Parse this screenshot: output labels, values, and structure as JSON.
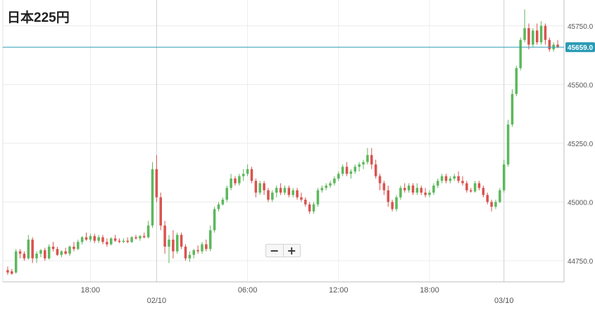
{
  "chart_data": {
    "type": "candlestick",
    "title": "日本225円",
    "y_ticks": [
      "44750.0",
      "45000.0",
      "45250.0",
      "45500.0",
      "45750.0"
    ],
    "ylim": [
      44660,
      45860
    ],
    "current_price": "45659.0",
    "x_tick_labels": [
      {
        "label": "18:00",
        "index": 20
      },
      {
        "label": "02/10",
        "index": 36
      },
      {
        "label": "06:00",
        "index": 58
      },
      {
        "label": "12:00",
        "index": 80
      },
      {
        "label": "18:00",
        "index": 102
      },
      {
        "label": "03/10",
        "index": 120
      }
    ],
    "grid": true,
    "colors": {
      "up": "#5cb85c",
      "down": "#d9534f",
      "price_line": "#2a9bb5",
      "price_label_bg": "#2a9bb5",
      "grid": "#ececec"
    },
    "candles": [
      [
        44710,
        44725,
        44690,
        44700
      ],
      [
        44705,
        44715,
        44690,
        44695
      ],
      [
        44700,
        44800,
        44695,
        44790
      ],
      [
        44790,
        44800,
        44760,
        44780
      ],
      [
        44780,
        44790,
        44750,
        44760
      ],
      [
        44760,
        44860,
        44755,
        44840
      ],
      [
        44840,
        44850,
        44740,
        44760
      ],
      [
        44760,
        44790,
        44740,
        44780
      ],
      [
        44780,
        44800,
        44765,
        44795
      ],
      [
        44795,
        44805,
        44750,
        44760
      ],
      [
        44760,
        44820,
        44755,
        44810
      ],
      [
        44810,
        44830,
        44790,
        44800
      ],
      [
        44800,
        44810,
        44770,
        44775
      ],
      [
        44775,
        44795,
        44765,
        44790
      ],
      [
        44790,
        44805,
        44775,
        44780
      ],
      [
        44780,
        44815,
        44770,
        44810
      ],
      [
        44810,
        44830,
        44790,
        44800
      ],
      [
        44800,
        44840,
        44795,
        44830
      ],
      [
        44830,
        44855,
        44820,
        44850
      ],
      [
        44850,
        44870,
        44835,
        44840
      ],
      [
        44840,
        44865,
        44830,
        44855
      ],
      [
        44855,
        44865,
        44825,
        44835
      ],
      [
        44835,
        44860,
        44825,
        44850
      ],
      [
        44850,
        44860,
        44820,
        44830
      ],
      [
        44830,
        44845,
        44810,
        44820
      ],
      [
        44820,
        44850,
        44815,
        44845
      ],
      [
        44845,
        44860,
        44830,
        44835
      ],
      [
        44835,
        44845,
        44825,
        44830
      ],
      [
        44830,
        44845,
        44825,
        44835
      ],
      [
        44835,
        44850,
        44825,
        44830
      ],
      [
        44830,
        44855,
        44825,
        44850
      ],
      [
        44850,
        44860,
        44840,
        44845
      ],
      [
        44845,
        44860,
        44835,
        44855
      ],
      [
        44855,
        44870,
        44845,
        44850
      ],
      [
        44850,
        44920,
        44845,
        44900
      ],
      [
        44900,
        45170,
        44890,
        45140
      ],
      [
        45140,
        45200,
        45000,
        45020
      ],
      [
        45020,
        45040,
        44880,
        44900
      ],
      [
        44900,
        44920,
        44780,
        44810
      ],
      [
        44810,
        44860,
        44740,
        44840
      ],
      [
        44840,
        44880,
        44760,
        44790
      ],
      [
        44790,
        44870,
        44780,
        44860
      ],
      [
        44860,
        44870,
        44800,
        44810
      ],
      [
        44810,
        44820,
        44750,
        44760
      ],
      [
        44760,
        44790,
        44745,
        44775
      ],
      [
        44775,
        44800,
        44760,
        44795
      ],
      [
        44795,
        44815,
        44780,
        44790
      ],
      [
        44790,
        44830,
        44780,
        44820
      ],
      [
        44820,
        44840,
        44790,
        44800
      ],
      [
        44800,
        44900,
        44790,
        44880
      ],
      [
        44880,
        44980,
        44870,
        44970
      ],
      [
        44970,
        45000,
        44960,
        44990
      ],
      [
        44990,
        45020,
        44985,
        45010
      ],
      [
        45010,
        45070,
        45000,
        45060
      ],
      [
        45060,
        45120,
        45050,
        45100
      ],
      [
        45100,
        45110,
        45070,
        45080
      ],
      [
        45080,
        45120,
        45070,
        45110
      ],
      [
        45110,
        45140,
        45090,
        45120
      ],
      [
        45120,
        45160,
        45110,
        45140
      ],
      [
        45140,
        45150,
        45080,
        45090
      ],
      [
        45090,
        45100,
        45020,
        45040
      ],
      [
        45040,
        45090,
        45030,
        45080
      ],
      [
        45080,
        45090,
        45030,
        45050
      ],
      [
        45050,
        45060,
        45000,
        45010
      ],
      [
        45010,
        45050,
        45000,
        45040
      ],
      [
        45040,
        45070,
        45020,
        45060
      ],
      [
        45060,
        45080,
        45030,
        45040
      ],
      [
        45040,
        45070,
        45030,
        45060
      ],
      [
        45060,
        45070,
        45020,
        45030
      ],
      [
        45030,
        45060,
        45020,
        45050
      ],
      [
        45050,
        45060,
        45010,
        45020
      ],
      [
        45020,
        45040,
        45000,
        45010
      ],
      [
        45010,
        45020,
        44980,
        44990
      ],
      [
        44990,
        45000,
        44950,
        44960
      ],
      [
        44960,
        45000,
        44950,
        44990
      ],
      [
        44990,
        45060,
        44980,
        45050
      ],
      [
        45050,
        45070,
        45040,
        45060
      ],
      [
        45060,
        45080,
        45050,
        45070
      ],
      [
        45070,
        45090,
        45060,
        45080
      ],
      [
        45080,
        45110,
        45070,
        45100
      ],
      [
        45100,
        45130,
        45090,
        45120
      ],
      [
        45120,
        45160,
        45110,
        45150
      ],
      [
        45150,
        45170,
        45110,
        45120
      ],
      [
        45120,
        45140,
        45100,
        45130
      ],
      [
        45130,
        45160,
        45120,
        45150
      ],
      [
        45150,
        45170,
        45130,
        45160
      ],
      [
        45160,
        45180,
        45140,
        45170
      ],
      [
        45170,
        45230,
        45160,
        45200
      ],
      [
        45200,
        45230,
        45140,
        45160
      ],
      [
        45160,
        45180,
        45100,
        45110
      ],
      [
        45110,
        45120,
        45050,
        45080
      ],
      [
        45080,
        45090,
        45030,
        45050
      ],
      [
        45050,
        45070,
        44980,
        45000
      ],
      [
        45000,
        45010,
        44960,
        44970
      ],
      [
        44970,
        45030,
        44960,
        45020
      ],
      [
        45020,
        45070,
        45010,
        45060
      ],
      [
        45060,
        45080,
        45040,
        45050
      ],
      [
        45050,
        45080,
        45040,
        45070
      ],
      [
        45070,
        45080,
        45030,
        45040
      ],
      [
        45040,
        45080,
        45030,
        45060
      ],
      [
        45060,
        45070,
        45030,
        45040
      ],
      [
        45040,
        45060,
        45020,
        45030
      ],
      [
        45030,
        45050,
        45020,
        45040
      ],
      [
        45040,
        45080,
        45030,
        45070
      ],
      [
        45070,
        45100,
        45060,
        45090
      ],
      [
        45090,
        45120,
        45080,
        45110
      ],
      [
        45110,
        45120,
        45080,
        45090
      ],
      [
        45090,
        45110,
        45080,
        45100
      ],
      [
        45100,
        45120,
        45090,
        45110
      ],
      [
        45110,
        45130,
        45080,
        45090
      ],
      [
        45090,
        45110,
        45070,
        45080
      ],
      [
        45080,
        45090,
        45040,
        45050
      ],
      [
        45050,
        45060,
        45040,
        45045
      ],
      [
        45045,
        45090,
        45040,
        45080
      ],
      [
        45080,
        45090,
        45050,
        45060
      ],
      [
        45060,
        45070,
        45020,
        45030
      ],
      [
        45030,
        45040,
        44990,
        45000
      ],
      [
        45000,
        45010,
        44960,
        44980
      ],
      [
        44980,
        45010,
        44970,
        45000
      ],
      [
        45000,
        45060,
        44995,
        45050
      ],
      [
        45050,
        45180,
        45040,
        45160
      ],
      [
        45160,
        45350,
        45150,
        45330
      ],
      [
        45330,
        45480,
        45320,
        45460
      ],
      [
        45460,
        45580,
        45450,
        45570
      ],
      [
        45570,
        45700,
        45560,
        45690
      ],
      [
        45690,
        45820,
        45680,
        45740
      ],
      [
        45740,
        45760,
        45650,
        45670
      ],
      [
        45670,
        45740,
        45660,
        45730
      ],
      [
        45730,
        45760,
        45670,
        45680
      ],
      [
        45680,
        45770,
        45670,
        45750
      ],
      [
        45750,
        45760,
        45670,
        45690
      ],
      [
        45690,
        45700,
        45640,
        45650
      ],
      [
        45650,
        45680,
        45640,
        45670
      ],
      [
        45670,
        45690,
        45655,
        45659
      ]
    ]
  },
  "zoom": {
    "minus": "−",
    "plus": "+"
  }
}
